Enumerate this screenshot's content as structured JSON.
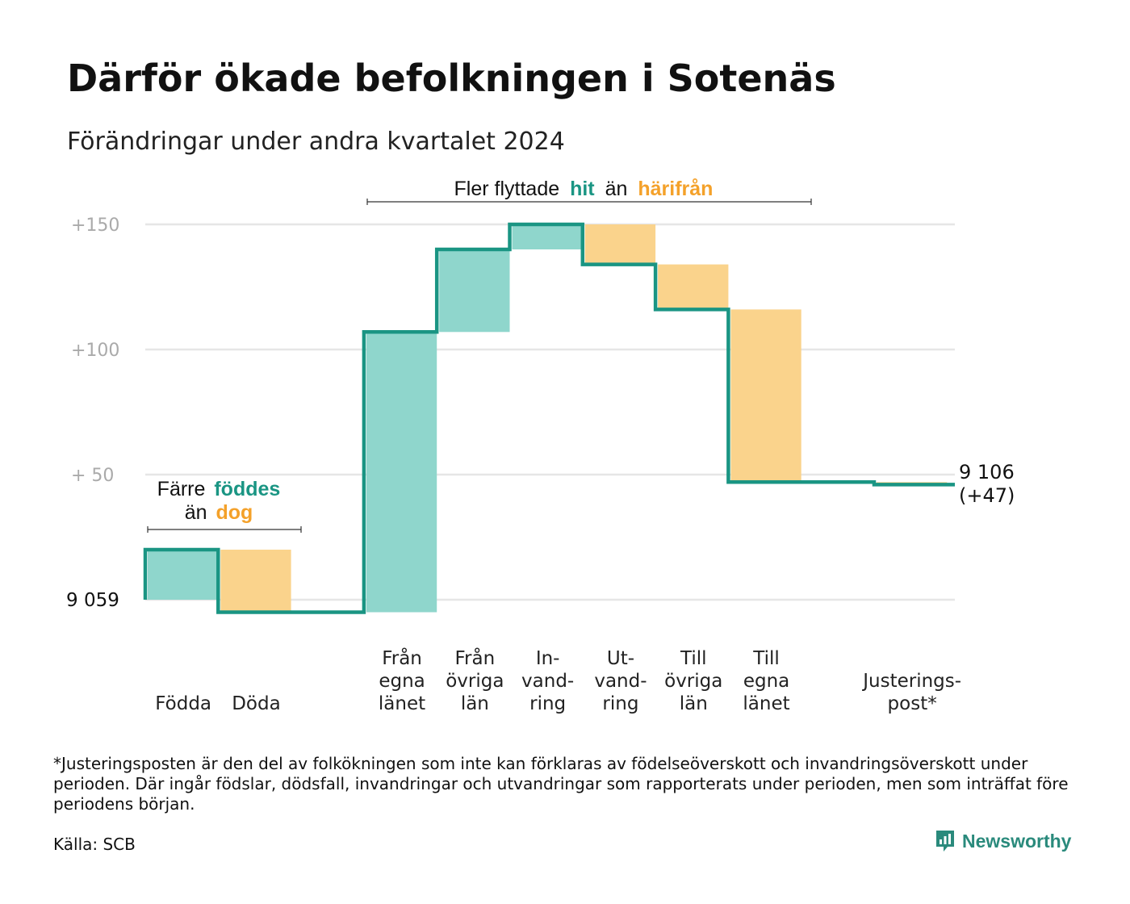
{
  "title": "Därför ökade befolkningen i Sotenäs",
  "subtitle": "Förändringar under andra kvartalet 2024",
  "footnote": "*Justeringsposten är den del av folkökningen som inte kan förklaras av födelseöverskott och invandringsöverskott under perioden. Där ingår födslar, dödsfall, invandringar och utvandringar som rapporterats under perioden, men som inträffat före periodens början.",
  "source": "Källa: SCB",
  "brand": "Newsworthy",
  "colors": {
    "line": "#1a9583",
    "increase": "#8fd6cc",
    "decrease": "#fad38c",
    "teal_text": "#1a9583",
    "orange_text": "#f4a12a",
    "grid": "#e6e6e6"
  },
  "annotations": {
    "births": {
      "prefix": "Färre",
      "hl1": "föddes",
      "mid": "än",
      "hl2": "dog"
    },
    "migration": {
      "prefix": "Fler flyttade",
      "hl1": "hit",
      "mid": "än",
      "hl2": "härifrån"
    }
  },
  "start_label": "9  059",
  "end_label": [
    "9 106",
    "(+47)"
  ],
  "chart_data": {
    "type": "waterfall",
    "title": "Därför ökade befolkningen i Sotenäs",
    "subtitle": "Förändringar under andra kvartalet 2024",
    "base_value": 9059,
    "end_value": 9106,
    "net_change": 47,
    "y_ticks": [
      "+150",
      "+100",
      "+  50"
    ],
    "y_tick_values": [
      150,
      100,
      50
    ],
    "ylim": [
      -10,
      150
    ],
    "grid": true,
    "categories": [
      {
        "label": [
          "Födda"
        ],
        "value": 20
      },
      {
        "label": [
          "Döda"
        ],
        "value": -25
      },
      {
        "label": [],
        "value": 0
      },
      {
        "label": [
          "Från",
          "egna",
          "länet"
        ],
        "value": 112
      },
      {
        "label": [
          "Från",
          "övriga",
          "län"
        ],
        "value": 33
      },
      {
        "label": [
          "In-",
          "vand-",
          "ring"
        ],
        "value": 10
      },
      {
        "label": [
          "Ut-",
          "vand-",
          "ring"
        ],
        "value": -16
      },
      {
        "label": [
          "Till",
          "övriga",
          "län"
        ],
        "value": -18
      },
      {
        "label": [
          "Till",
          "egna",
          "länet"
        ],
        "value": -69
      },
      {
        "label": [],
        "value": 0
      },
      {
        "label": [
          "Justerings-",
          "post*"
        ],
        "value": -1
      }
    ]
  }
}
